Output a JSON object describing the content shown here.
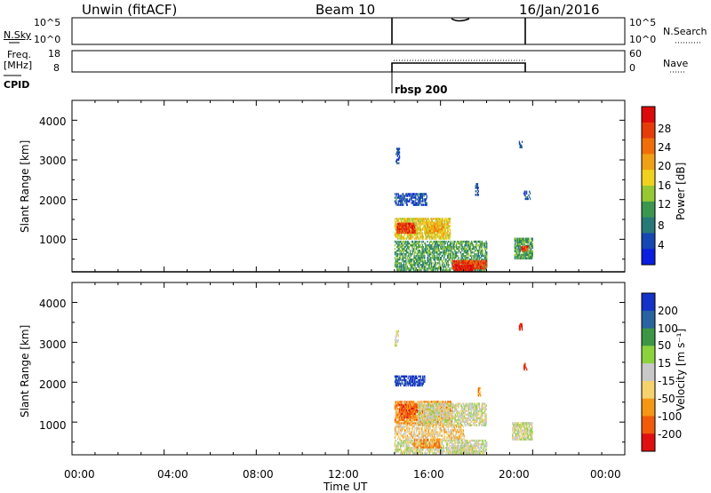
{
  "header": {
    "station": "Unwin (fitACF)",
    "beam": "Beam 10",
    "date": "16/Jan/2016"
  },
  "noise_panel": {
    "left_label": "N.Sky",
    "right_label": "N.Search",
    "ticks": [
      "10^5",
      "10^0"
    ]
  },
  "freq_panel": {
    "left_label_1": "Freq.",
    "left_label_2": "[MHz]",
    "left_ticks": [
      "18",
      "8"
    ],
    "right_label": "Nave",
    "right_ticks": [
      "60",
      "0"
    ]
  },
  "cpid": {
    "label": "CPID",
    "value": "rbsp 200"
  },
  "chart_data": [
    {
      "type": "heatmap",
      "name": "power",
      "ylabel": "Slant Range [km]",
      "xlabel": "",
      "x_range_hours": [
        0,
        24
      ],
      "y_range_km": [
        180,
        4500
      ],
      "yticks": [
        "4000",
        "3000",
        "2000",
        "1000"
      ],
      "colorbar": {
        "label": "Power [dB]",
        "ticks": [
          "28",
          "24",
          "20",
          "16",
          "12",
          "8",
          "4"
        ],
        "colors": [
          "#0a1ee0",
          "#1446b4",
          "#287878",
          "#3c9650",
          "#96c832",
          "#f0d21e",
          "#f0a014",
          "#f06e0a",
          "#e63c0a",
          "#dc0a0a"
        ]
      },
      "blobs": [
        {
          "t0": 14.05,
          "t1": 14.2,
          "r0": 2900,
          "r1": 3300,
          "c": 1,
          "d": 0.6
        },
        {
          "t0": 14.0,
          "t1": 15.4,
          "r0": 1850,
          "r1": 2150,
          "c": 1,
          "d": 0.55
        },
        {
          "t0": 14.0,
          "t1": 16.4,
          "r0": 1000,
          "r1": 1500,
          "c": 5,
          "d": 0.7
        },
        {
          "t0": 14.1,
          "t1": 14.9,
          "r0": 1150,
          "r1": 1400,
          "c": 8,
          "d": 0.8
        },
        {
          "t0": 15.4,
          "t1": 16.1,
          "r0": 1150,
          "r1": 1400,
          "c": 6,
          "d": 0.7
        },
        {
          "t0": 14.0,
          "t1": 18.0,
          "r0": 200,
          "r1": 950,
          "c": 3,
          "d": 0.55
        },
        {
          "t0": 16.5,
          "t1": 18.0,
          "r0": 250,
          "r1": 450,
          "c": 8,
          "d": 0.75
        },
        {
          "t0": 16.6,
          "t1": 17.4,
          "r0": 180,
          "r1": 320,
          "c": 9,
          "d": 0.8
        },
        {
          "t0": 17.5,
          "t1": 17.65,
          "r0": 2100,
          "r1": 2400,
          "c": 1,
          "d": 0.5
        },
        {
          "t0": 19.2,
          "t1": 20.0,
          "r0": 500,
          "r1": 1000,
          "c": 3,
          "d": 0.75
        },
        {
          "t0": 19.5,
          "t1": 19.8,
          "r0": 700,
          "r1": 800,
          "c": 8,
          "d": 0.8
        },
        {
          "t0": 19.4,
          "t1": 19.55,
          "r0": 3300,
          "r1": 3450,
          "c": 1,
          "d": 0.5
        },
        {
          "t0": 19.6,
          "t1": 19.9,
          "r0": 2000,
          "r1": 2200,
          "c": 1,
          "d": 0.4
        }
      ]
    },
    {
      "type": "heatmap",
      "name": "velocity",
      "ylabel": "Slant Range [km]",
      "xlabel": "Time UT",
      "x_range_hours": [
        0,
        24
      ],
      "y_range_km": [
        180,
        4500
      ],
      "xticks": [
        "00:00",
        "04:00",
        "08:00",
        "12:00",
        "16:00",
        "20:00",
        "00:00"
      ],
      "yticks": [
        "4000",
        "3000",
        "2000",
        "1000"
      ],
      "colorbar": {
        "label": "Velocity [m s⁻¹]",
        "ticks": [
          "200",
          "100",
          "50",
          "15",
          "-15",
          "-50",
          "-100",
          "-200"
        ],
        "colors": [
          "#e01010",
          "#f05a0a",
          "#f59614",
          "#f5d26e",
          "#c8c8c8",
          "#8cd23c",
          "#3c9646",
          "#2864a0",
          "#1432c8"
        ]
      },
      "blobs": [
        {
          "t0": 14.0,
          "t1": 14.15,
          "r0": 2900,
          "r1": 3300,
          "c": 4,
          "d": 0.5
        },
        {
          "t0": 14.0,
          "t1": 15.3,
          "r0": 1900,
          "r1": 2150,
          "c": 8,
          "d": 0.6
        },
        {
          "t0": 14.0,
          "t1": 16.5,
          "r0": 950,
          "r1": 1500,
          "c": 2,
          "d": 0.65
        },
        {
          "t0": 14.2,
          "t1": 15.0,
          "r0": 1100,
          "r1": 1450,
          "c": 1,
          "d": 0.7
        },
        {
          "t0": 15.0,
          "t1": 18.0,
          "r0": 900,
          "r1": 1450,
          "c": 4,
          "d": 0.6
        },
        {
          "t0": 14.0,
          "t1": 17.0,
          "r0": 550,
          "r1": 950,
          "c": 3,
          "d": 0.5
        },
        {
          "t0": 14.0,
          "t1": 18.0,
          "r0": 200,
          "r1": 550,
          "c": 4,
          "d": 0.55
        },
        {
          "t0": 14.8,
          "t1": 16.0,
          "r0": 350,
          "r1": 550,
          "c": 2,
          "d": 0.6
        },
        {
          "t0": 16.5,
          "t1": 17.5,
          "r0": 200,
          "r1": 400,
          "c": 4,
          "d": 0.7
        },
        {
          "t0": 17.6,
          "t1": 17.75,
          "r0": 1650,
          "r1": 1850,
          "c": 2,
          "d": 0.6
        },
        {
          "t0": 19.1,
          "t1": 20.0,
          "r0": 550,
          "r1": 1000,
          "c": 4,
          "d": 0.7
        },
        {
          "t0": 19.4,
          "t1": 19.55,
          "r0": 3300,
          "r1": 3450,
          "c": 0,
          "d": 0.5
        },
        {
          "t0": 19.6,
          "t1": 19.75,
          "r0": 2300,
          "r1": 2450,
          "c": 0,
          "d": 0.5
        }
      ]
    }
  ]
}
